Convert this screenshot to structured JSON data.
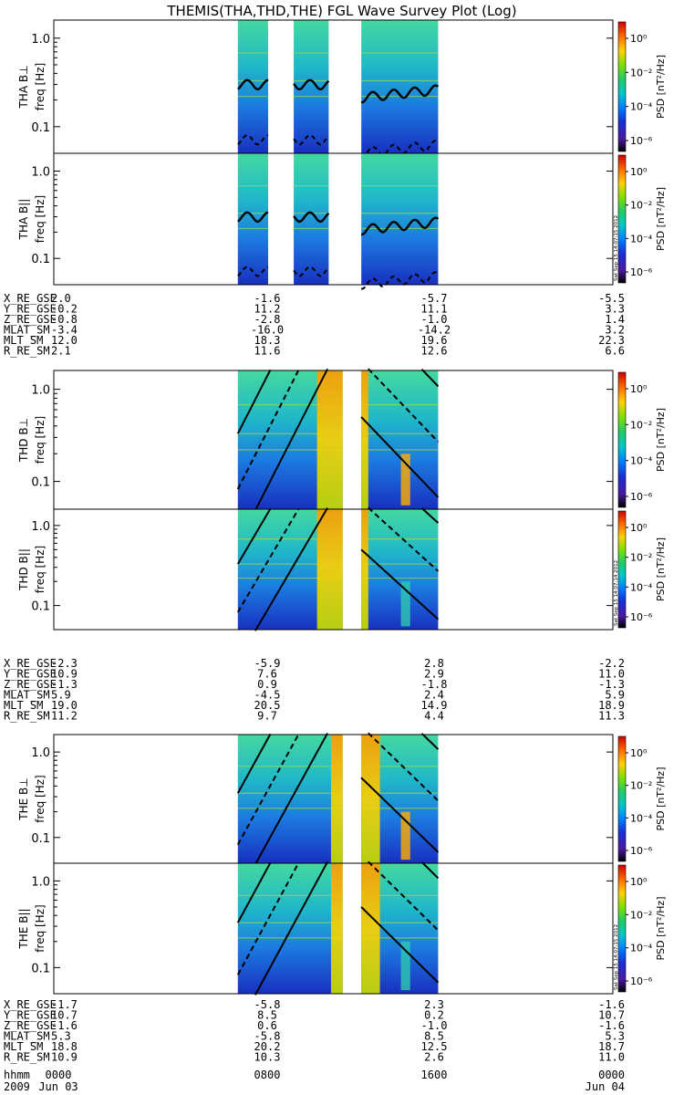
{
  "title": "THEMIS(THA,THD,THE) FGL Wave Survey Plot (Log)",
  "colorbar": {
    "label": "PSD [nT²/Hz]",
    "tick_labels": [
      "10⁰",
      "10⁻²",
      "10⁻⁴",
      "10⁻⁶"
    ],
    "colors": [
      "#d00000",
      "#ff6a00",
      "#ffd000",
      "#7fe000",
      "#22cc66",
      "#00c8c8",
      "#0080ff",
      "#1a2fd8",
      "#4a1aa0",
      "#000000"
    ]
  },
  "timestamp_tags": [
    "Sat Sep 15 14:07:15 2012",
    "Sat Sep 15 14:07:14 2012",
    "Sat Sep 15 14:07:15 2012"
  ],
  "freq_axis_label": "freq [Hz]",
  "freq_tick_labels": [
    "1.0",
    "0.1"
  ],
  "orbit_row_labels": [
    "X_RE_GSE",
    "Y_RE_GSE",
    "Z_RE_GSE",
    "MLAT_SM",
    "MLT_SM",
    "R_RE_SM"
  ],
  "time_axis": {
    "row_labels": [
      "hhmm",
      "2009"
    ],
    "hhmm": [
      "0000",
      "0800",
      "1600",
      "0000"
    ],
    "dates": [
      "Jun 03",
      "Jun 04"
    ]
  },
  "probes": [
    {
      "panel_labels": [
        "THA B⊥",
        "THA B||"
      ],
      "orbit": [
        [
          "2.0",
          "-1.6",
          "-5.7",
          "-5.5"
        ],
        [
          "-0.2",
          "11.2",
          "11.1",
          "3.3"
        ],
        [
          "-0.8",
          "-2.8",
          "-1.0",
          "1.4"
        ],
        [
          "-3.4",
          "-16.0",
          "-14.2",
          "3.2"
        ],
        [
          "12.0",
          "18.3",
          "19.6",
          "22.3"
        ],
        [
          "2.1",
          "11.6",
          "12.6",
          "6.6"
        ]
      ]
    },
    {
      "panel_labels": [
        "THD B⊥",
        "THD B||"
      ],
      "orbit": [
        [
          "-2.3",
          "-5.9",
          "2.8",
          "-2.2"
        ],
        [
          "10.9",
          "7.6",
          "2.9",
          "11.0"
        ],
        [
          "-1.3",
          "0.9",
          "-1.8",
          "-1.3"
        ],
        [
          "5.9",
          "-4.5",
          "2.4",
          "5.9"
        ],
        [
          "19.0",
          "20.5",
          "14.9",
          "18.9"
        ],
        [
          "11.2",
          "9.7",
          "4.4",
          "11.3"
        ]
      ]
    },
    {
      "panel_labels": [
        "THE B⊥",
        "THE B||"
      ],
      "orbit": [
        [
          "-1.7",
          "-5.8",
          "2.3",
          "-1.6"
        ],
        [
          "10.7",
          "8.5",
          "0.2",
          "10.7"
        ],
        [
          "-1.6",
          "0.6",
          "-1.0",
          "-1.6"
        ],
        [
          "5.3",
          "-5.8",
          "8.5",
          "5.3"
        ],
        [
          "18.8",
          "20.2",
          "12.5",
          "18.7"
        ],
        [
          "10.9",
          "10.3",
          "2.6",
          "11.0"
        ]
      ]
    }
  ],
  "chart_data": {
    "type": "heatmap",
    "title": "THEMIS(THA,THD,THE) FGL Wave Survey Plot (Log)",
    "xlabel": "hhmm",
    "x_range": [
      "2009 Jun 03 00:00",
      "2009 Jun 04 00:00"
    ],
    "x_ticks": [
      "0000",
      "0800",
      "1600",
      "0000"
    ],
    "ylabel": "freq [Hz]",
    "y_scale": "log",
    "ylim": [
      0.05,
      1.6
    ],
    "colorbar": {
      "label": "PSD [nT²/Hz]",
      "scale": "log",
      "range": [
        1e-06,
        10.0
      ]
    },
    "panels": [
      {
        "name": "THA B⊥",
        "data_intervals_hours": [
          [
            7.9,
            9.2
          ],
          [
            10.3,
            11.8
          ],
          [
            13.2,
            16.5
          ]
        ]
      },
      {
        "name": "THA B||",
        "data_intervals_hours": [
          [
            7.9,
            9.2
          ],
          [
            10.3,
            11.8
          ],
          [
            13.2,
            16.5
          ]
        ]
      },
      {
        "name": "THD B⊥",
        "data_intervals_hours": [
          [
            7.9,
            12.4
          ],
          [
            13.2,
            16.5
          ]
        ]
      },
      {
        "name": "THD B||",
        "data_intervals_hours": [
          [
            7.9,
            12.4
          ],
          [
            13.2,
            16.5
          ]
        ]
      },
      {
        "name": "THE B⊥",
        "data_intervals_hours": [
          [
            7.9,
            12.4
          ],
          [
            13.2,
            16.5
          ]
        ]
      },
      {
        "name": "THE B||",
        "data_intervals_hours": [
          [
            7.9,
            12.4
          ],
          [
            13.2,
            16.5
          ]
        ]
      }
    ]
  }
}
